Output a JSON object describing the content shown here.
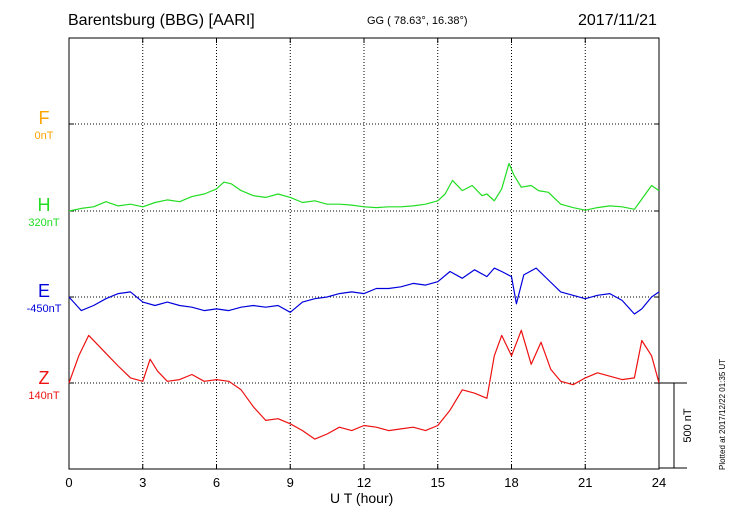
{
  "header": {
    "station": "Barentsburg (BBG)  [AARI]",
    "coords": "GG ( 78.63°,  16.38°)",
    "date": "2017/11/21"
  },
  "footer": {
    "plotted": "Plotted at 2017/12/22 01:35 UT"
  },
  "chart_data": {
    "type": "line",
    "title": "Barentsburg (BBG)  [AARI]",
    "xlabel": "U T (hour)",
    "ylabel": "",
    "xlim": [
      0,
      24
    ],
    "xticks": [
      0,
      3,
      6,
      9,
      12,
      15,
      18,
      21,
      24
    ],
    "grid": true,
    "scale_bar": "500 nT",
    "scale_bar_nT": 500,
    "series": [
      {
        "name": "F",
        "baseline_label": "0nT",
        "baseline_nT": 0,
        "color": "#FFA500",
        "x": [],
        "y": []
      },
      {
        "name": "H",
        "baseline_label": "320nT",
        "baseline_nT": 320,
        "color": "#22DD22",
        "x": [
          0,
          0.5,
          1,
          1.5,
          2,
          2.5,
          3,
          3.5,
          4,
          4.5,
          5,
          5.5,
          6,
          6.3,
          6.6,
          7,
          7.5,
          8,
          8.5,
          9,
          9.5,
          10,
          10.5,
          11,
          11.5,
          12,
          12.5,
          13,
          13.5,
          14,
          14.5,
          15,
          15.3,
          15.6,
          16,
          16.4,
          16.8,
          17,
          17.3,
          17.6,
          17.9,
          18.1,
          18.4,
          18.8,
          19.1,
          19.5,
          20,
          20.5,
          21,
          21.5,
          22,
          22.5,
          23,
          23.3,
          23.7,
          24
        ],
        "y": [
          320,
          335,
          345,
          375,
          350,
          360,
          345,
          370,
          385,
          375,
          405,
          420,
          450,
          490,
          480,
          440,
          410,
          400,
          420,
          400,
          370,
          380,
          360,
          360,
          355,
          345,
          340,
          345,
          345,
          350,
          360,
          380,
          420,
          500,
          440,
          470,
          410,
          420,
          380,
          450,
          600,
          530,
          460,
          470,
          440,
          430,
          360,
          340,
          325,
          340,
          350,
          345,
          330,
          390,
          470,
          440
        ]
      },
      {
        "name": "E",
        "baseline_label": "-450nT",
        "baseline_nT": -450,
        "color": "#0000DD",
        "x": [
          0,
          0.5,
          1,
          1.5,
          2,
          2.5,
          3,
          3.5,
          4,
          4.5,
          5,
          5.5,
          6,
          6.5,
          7,
          7.5,
          8,
          8.5,
          9,
          9.5,
          10,
          10.5,
          11,
          11.5,
          12,
          12.5,
          13,
          13.5,
          14,
          14.5,
          15,
          15.5,
          16,
          16.5,
          17,
          17.3,
          17.6,
          18,
          18.2,
          18.5,
          19,
          19.5,
          20,
          20.5,
          21,
          21.5,
          22,
          22.5,
          23,
          23.3,
          23.7,
          24
        ],
        "y": [
          -450,
          -530,
          -500,
          -460,
          -430,
          -420,
          -480,
          -500,
          -480,
          -500,
          -510,
          -530,
          -520,
          -530,
          -510,
          -500,
          -510,
          -500,
          -540,
          -480,
          -460,
          -450,
          -430,
          -420,
          -430,
          -400,
          -400,
          -390,
          -370,
          -380,
          -360,
          -300,
          -340,
          -290,
          -330,
          -280,
          -300,
          -330,
          -490,
          -320,
          -280,
          -350,
          -420,
          -440,
          -460,
          -440,
          -430,
          -470,
          -550,
          -520,
          -450,
          -420
        ]
      },
      {
        "name": "Z",
        "baseline_label": "140nT",
        "baseline_nT": 140,
        "color": "#EE1111",
        "x": [
          0,
          0.4,
          0.8,
          1.2,
          1.6,
          2,
          2.5,
          3,
          3.3,
          3.6,
          4,
          4.5,
          5,
          5.5,
          6,
          6.5,
          7,
          7.5,
          8,
          8.5,
          9,
          9.5,
          10,
          10.5,
          11,
          11.5,
          12,
          12.5,
          13,
          13.5,
          14,
          14.5,
          15,
          15.5,
          16,
          16.5,
          17,
          17.3,
          17.6,
          18,
          18.4,
          18.8,
          19.2,
          19.6,
          20,
          20.5,
          21,
          21.5,
          22,
          22.5,
          23,
          23.3,
          23.7,
          24
        ],
        "y": [
          140,
          300,
          420,
          360,
          300,
          240,
          170,
          150,
          280,
          210,
          150,
          160,
          190,
          150,
          160,
          150,
          100,
          0,
          -80,
          -70,
          -100,
          -140,
          -190,
          -160,
          -120,
          -140,
          -110,
          -120,
          -140,
          -130,
          -120,
          -140,
          -110,
          -20,
          100,
          80,
          50,
          300,
          420,
          300,
          450,
          250,
          380,
          220,
          150,
          130,
          170,
          200,
          180,
          160,
          170,
          390,
          300,
          140
        ]
      }
    ]
  }
}
